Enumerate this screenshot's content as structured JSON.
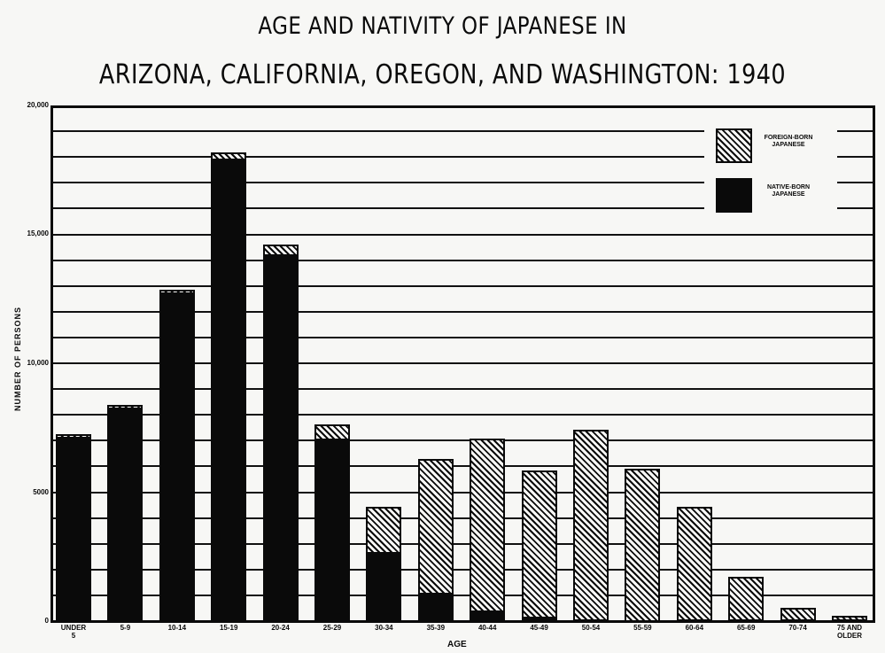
{
  "title": {
    "line1": "AGE AND NATIVITY OF JAPANESE IN",
    "line2": "ARIZONA, CALIFORNIA, OREGON, AND WASHINGTON: 1940"
  },
  "axes": {
    "ylabel": "NUMBER OF PERSONS",
    "xlabel": "AGE",
    "yticks": [
      "0",
      "5000",
      "10,000",
      "15,000",
      "20,000"
    ]
  },
  "legend": {
    "foreign": "FOREIGN-BORN JAPANESE",
    "native": "NATIVE-BORN JAPANESE"
  },
  "colors": {
    "native": "#0a0a0a",
    "foreign_hatch": "#0a0a0a",
    "background": "#f7f7f5"
  },
  "chart_data": {
    "type": "bar",
    "stacked": true,
    "title": "AGE AND NATIVITY OF JAPANESE IN ARIZONA, CALIFORNIA, OREGON, AND WASHINGTON: 1940",
    "xlabel": "AGE",
    "ylabel": "NUMBER OF PERSONS",
    "ylim": [
      0,
      20000
    ],
    "ytick_step": 5000,
    "grid": true,
    "grid_step": 1000,
    "legend_position": "upper right",
    "categories": [
      "UNDER 5",
      "5-9",
      "10-14",
      "15-19",
      "20-24",
      "25-29",
      "30-34",
      "35-39",
      "40-44",
      "45-49",
      "50-54",
      "55-59",
      "60-64",
      "65-69",
      "70-74",
      "75 AND OLDER"
    ],
    "series": [
      {
        "name": "NATIVE-BORN JAPANESE",
        "fill": "solid black",
        "values": [
          7100,
          8250,
          12700,
          17900,
          14200,
          7050,
          2650,
          1070,
          380,
          130,
          20,
          10,
          0,
          0,
          0,
          0
        ]
      },
      {
        "name": "FOREIGN-BORN JAPANESE",
        "fill": "diagonal hatch",
        "values": [
          150,
          130,
          150,
          280,
          400,
          580,
          1780,
          5220,
          6700,
          5710,
          7400,
          5900,
          4430,
          1720,
          520,
          210
        ]
      }
    ],
    "totals": [
      7250,
      8380,
      12850,
      18180,
      14600,
      7630,
      4430,
      6290,
      7080,
      5840,
      7420,
      5910,
      4430,
      1720,
      520,
      210
    ]
  }
}
